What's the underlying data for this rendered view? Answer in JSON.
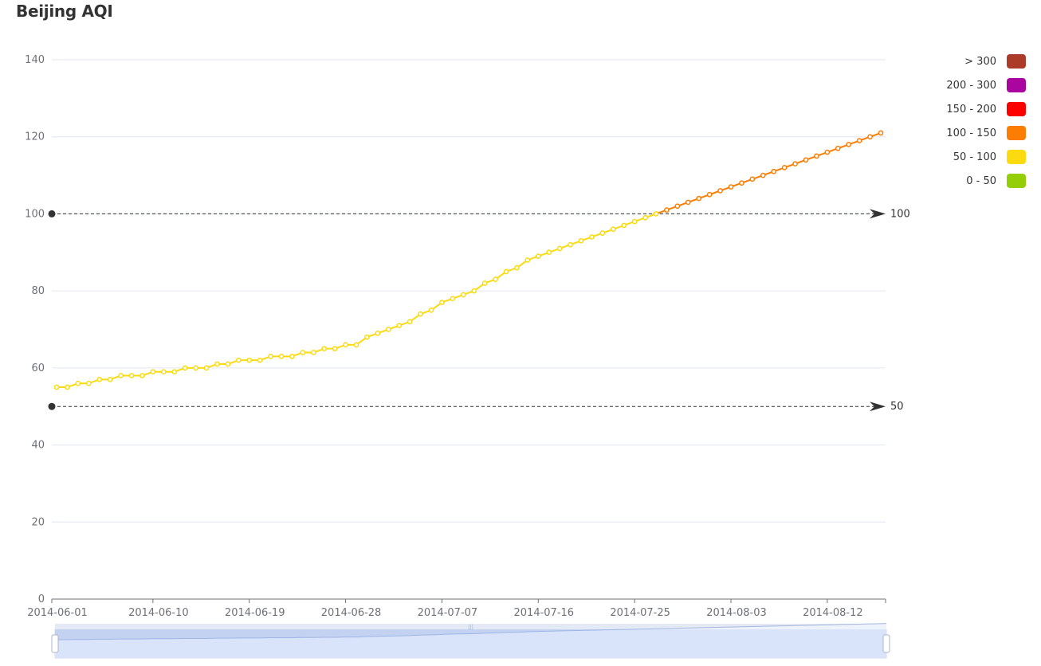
{
  "chart_data": {
    "type": "line",
    "title": "Beijing AQI",
    "xlabel": "",
    "ylabel": "",
    "ylim": [
      0,
      140
    ],
    "y_ticks": [
      0,
      20,
      40,
      60,
      80,
      100,
      120,
      140
    ],
    "x_start": "2014-06-01",
    "x_tick_labels": [
      "2014-06-01",
      "2014-06-10",
      "2014-06-19",
      "2014-06-28",
      "2014-07-07",
      "2014-07-16",
      "2014-07-25",
      "2014-08-03",
      "2014-08-12"
    ],
    "grid": true,
    "series": [
      {
        "values": [
          55,
          55,
          56,
          56,
          57,
          57,
          58,
          58,
          58,
          59,
          59,
          59,
          60,
          60,
          60,
          61,
          61,
          62,
          62,
          62,
          63,
          63,
          63,
          64,
          64,
          65,
          65,
          66,
          66,
          68,
          69,
          70,
          71,
          72,
          74,
          75,
          77,
          78,
          79,
          80,
          82,
          83,
          85,
          86,
          88,
          89,
          90,
          91,
          92,
          93,
          94,
          95,
          96,
          97,
          98,
          99,
          100,
          101,
          102,
          103,
          104,
          105,
          106,
          107,
          108,
          109,
          110,
          111,
          112,
          113,
          114,
          115,
          116,
          117,
          118,
          119,
          120,
          121
        ]
      }
    ],
    "mark_lines": [
      {
        "value": 50,
        "label": "50"
      },
      {
        "value": 100,
        "label": "100"
      }
    ],
    "visual_map": {
      "placement": "top-right",
      "pieces": [
        {
          "label": "> 300",
          "color": "#ac3b2a"
        },
        {
          "label": "200 - 300",
          "color": "#aa069f"
        },
        {
          "label": "150 - 200",
          "color": "#fd0100"
        },
        {
          "label": "100 - 150",
          "color": "#fc7d02"
        },
        {
          "label": "50 - 100",
          "color": "#fbdb0f"
        },
        {
          "label": "0 - 50",
          "color": "#93ce07"
        }
      ]
    },
    "data_zoom": {
      "placement": "bottom",
      "range": [
        0,
        100
      ]
    }
  }
}
